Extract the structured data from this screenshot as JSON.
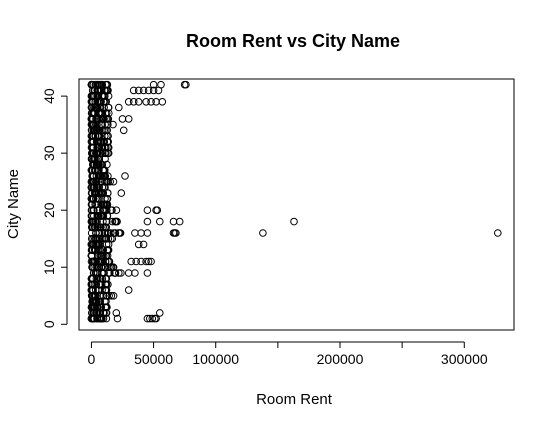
{
  "chart_data": {
    "type": "scatter",
    "title": "Room Rent vs City Name",
    "xlabel": "Room Rent",
    "ylabel": "City Name",
    "xlim": [
      -10000,
      340000
    ],
    "ylim": [
      -1,
      43
    ],
    "xticks": [
      0,
      50000,
      100000,
      200000,
      300000
    ],
    "xtick_labels": [
      "0",
      "50000",
      "100000",
      "200000",
      "300000"
    ],
    "xticks_unlabeled": [
      150000,
      250000
    ],
    "yticks": [
      0,
      10,
      20,
      30,
      40
    ],
    "ytick_labels": [
      "0",
      "10",
      "20",
      "30",
      "40"
    ],
    "grid": false,
    "legend": "none",
    "series": [
      {
        "points": [
          [
            45000,
            1
          ],
          [
            47000,
            1
          ],
          [
            49000,
            1
          ],
          [
            51000,
            1
          ],
          [
            52000,
            1
          ],
          [
            55000,
            2
          ],
          [
            20000,
            2
          ],
          [
            21000,
            1
          ],
          [
            30000,
            6
          ],
          [
            35000,
            9
          ],
          [
            30000,
            9
          ],
          [
            45000,
            9
          ],
          [
            36000,
            11
          ],
          [
            40000,
            11
          ],
          [
            44000,
            11
          ],
          [
            46000,
            11
          ],
          [
            48000,
            11
          ],
          [
            32000,
            11
          ],
          [
            38000,
            14
          ],
          [
            42000,
            14
          ],
          [
            35000,
            16
          ],
          [
            40000,
            16
          ],
          [
            45000,
            16
          ],
          [
            66000,
            16
          ],
          [
            67000,
            16
          ],
          [
            68000,
            16
          ],
          [
            138000,
            16
          ],
          [
            327000,
            16
          ],
          [
            45000,
            18
          ],
          [
            55000,
            18
          ],
          [
            66000,
            18
          ],
          [
            71000,
            18
          ],
          [
            163000,
            18
          ],
          [
            45000,
            20
          ],
          [
            52000,
            20
          ],
          [
            53000,
            20
          ],
          [
            27000,
            26
          ],
          [
            24000,
            23
          ],
          [
            26000,
            34
          ],
          [
            25000,
            36
          ],
          [
            30000,
            36
          ],
          [
            22000,
            38
          ],
          [
            30000,
            39
          ],
          [
            34000,
            39
          ],
          [
            38000,
            39
          ],
          [
            44000,
            39
          ],
          [
            48000,
            39
          ],
          [
            52000,
            39
          ],
          [
            57000,
            39
          ],
          [
            34000,
            41
          ],
          [
            38000,
            41
          ],
          [
            42000,
            41
          ],
          [
            46000,
            41
          ],
          [
            50000,
            41
          ],
          [
            54000,
            41
          ],
          [
            50000,
            42
          ],
          [
            56000,
            42
          ],
          [
            75000,
            42
          ],
          [
            76000,
            42
          ]
        ]
      }
    ]
  }
}
